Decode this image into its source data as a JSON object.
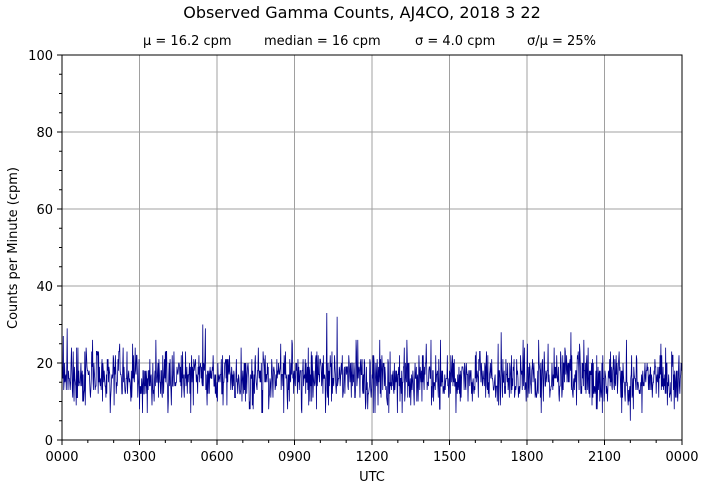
{
  "chart_data": {
    "type": "line",
    "title": "Observed Gamma Counts, AJ4CO, 2018 3 22",
    "stats": {
      "mean": "μ = 16.2 cpm",
      "median": "median = 16 cpm",
      "sigma": "σ = 4.0 cpm",
      "ratio": "σ/μ = 25%"
    },
    "xlabel": "UTC",
    "ylabel": "Counts per Minute (cpm)",
    "x_tick_labels": [
      "0000",
      "0300",
      "0600",
      "0900",
      "1200",
      "1500",
      "1800",
      "2100",
      "0000"
    ],
    "x_tick_hours": [
      0,
      3,
      6,
      9,
      12,
      15,
      18,
      21,
      24
    ],
    "xlim": [
      0,
      24
    ],
    "ylim": [
      0,
      100
    ],
    "y_ticks": [
      0,
      20,
      40,
      60,
      80,
      100
    ],
    "grid": true,
    "series": [
      {
        "color": "#00008b",
        "sampling": "one sample per minute, 1440 samples",
        "mean": 16.2,
        "std": 4.0,
        "min": 5,
        "max": 33,
        "peaks_hour_value": [
          [
            0.2,
            29
          ],
          [
            5.45,
            30
          ],
          [
            5.55,
            29
          ],
          [
            10.25,
            33
          ],
          [
            10.65,
            32
          ],
          [
            17.0,
            28
          ],
          [
            19.7,
            28
          ],
          [
            0.05,
            27
          ],
          [
            22.0,
            5
          ]
        ]
      }
    ]
  }
}
